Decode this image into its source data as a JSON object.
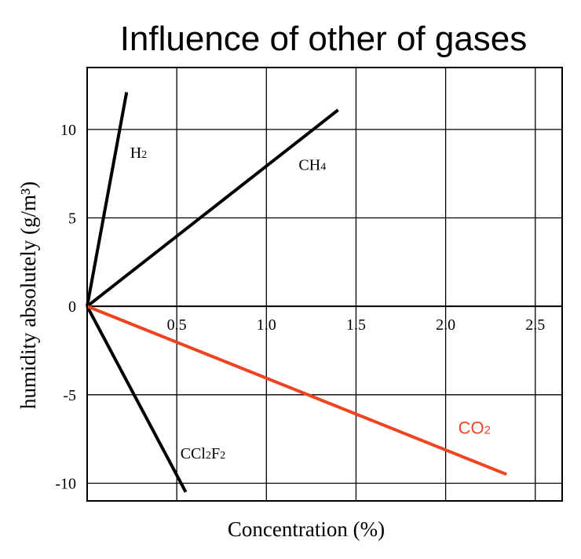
{
  "chart_data": {
    "type": "line",
    "title": "Influence of other of gases",
    "xlabel": "Concentration (%)",
    "ylabel": "humidity absolutely (g/m³)",
    "xlim": [
      0,
      2.65
    ],
    "ylim": [
      -11,
      13.5
    ],
    "grid": true,
    "xticks": [
      {
        "value": 0.5,
        "label": "0.5"
      },
      {
        "value": 1.0,
        "label": "1.0"
      },
      {
        "value": 1.5,
        "label": "1.5"
      },
      {
        "value": 2.0,
        "label": "2.0"
      },
      {
        "value": 2.5,
        "label": "2.5"
      }
    ],
    "yticks": [
      {
        "value": 10,
        "label": "10"
      },
      {
        "value": 5,
        "label": "5"
      },
      {
        "value": 0,
        "label": "0"
      },
      {
        "value": -5,
        "label": "-5"
      },
      {
        "value": -10,
        "label": "-10"
      }
    ],
    "series": [
      {
        "name": "H2",
        "label_main": "H",
        "label_sub": "2",
        "color": "#000000",
        "points": [
          {
            "x": 0,
            "y": 0
          },
          {
            "x": 0.22,
            "y": 12.1
          }
        ],
        "label_at": {
          "x": 0.24,
          "y": 8.4
        }
      },
      {
        "name": "CH4",
        "label_main": "CH",
        "label_sub": "4",
        "color": "#000000",
        "points": [
          {
            "x": 0,
            "y": 0
          },
          {
            "x": 1.4,
            "y": 11.1
          }
        ],
        "label_at": {
          "x": 1.18,
          "y": 7.7
        }
      },
      {
        "name": "CCl2F2",
        "label_main": "CCl",
        "label_sub": "2",
        "label_main2": "F",
        "label_sub2": "2",
        "color": "#000000",
        "points": [
          {
            "x": 0,
            "y": 0
          },
          {
            "x": 0.55,
            "y": -10.5
          }
        ],
        "label_at": {
          "x": 0.52,
          "y": -8.6
        }
      },
      {
        "name": "CO2",
        "label_main": "CO",
        "label_sub": "2",
        "color": "#ee4420",
        "points": [
          {
            "x": 0,
            "y": 0
          },
          {
            "x": 2.34,
            "y": -9.5
          }
        ],
        "label_at": {
          "x": 2.07,
          "y": -7.2
        }
      }
    ]
  }
}
